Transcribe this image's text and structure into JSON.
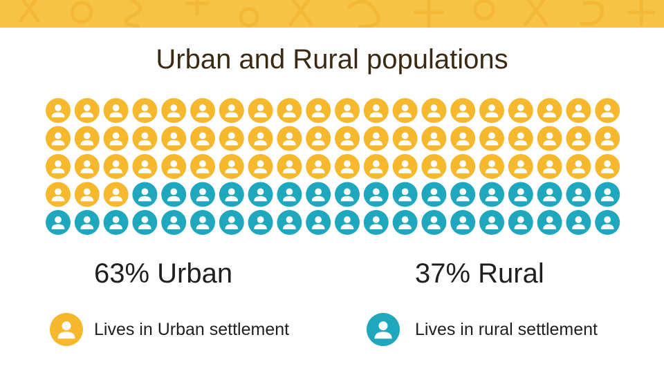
{
  "title": "Urban and Rural populations",
  "colors": {
    "banner": "#f6c344",
    "banner_glyph": "#f2b836",
    "urban": "#f6b92d",
    "rural": "#1fa8bd",
    "glyph": "#ffffff"
  },
  "banner_icons": [
    "math-symbols-pattern"
  ],
  "chart_data": {
    "type": "waffle",
    "total_icons": 100,
    "rows": 5,
    "columns": 20,
    "series": [
      {
        "name": "Urban",
        "percent": 63,
        "color": "#f6b92d"
      },
      {
        "name": "Rural",
        "percent": 37,
        "color": "#1fa8bd"
      }
    ]
  },
  "stats": {
    "urban": "63% Urban",
    "rural": "37% Rural"
  },
  "legend": [
    {
      "key": "urban",
      "icon": "person-icon",
      "label": "Lives in Urban settlement"
    },
    {
      "key": "rural",
      "icon": "person-icon",
      "label": "Lives in rural settlement"
    }
  ]
}
